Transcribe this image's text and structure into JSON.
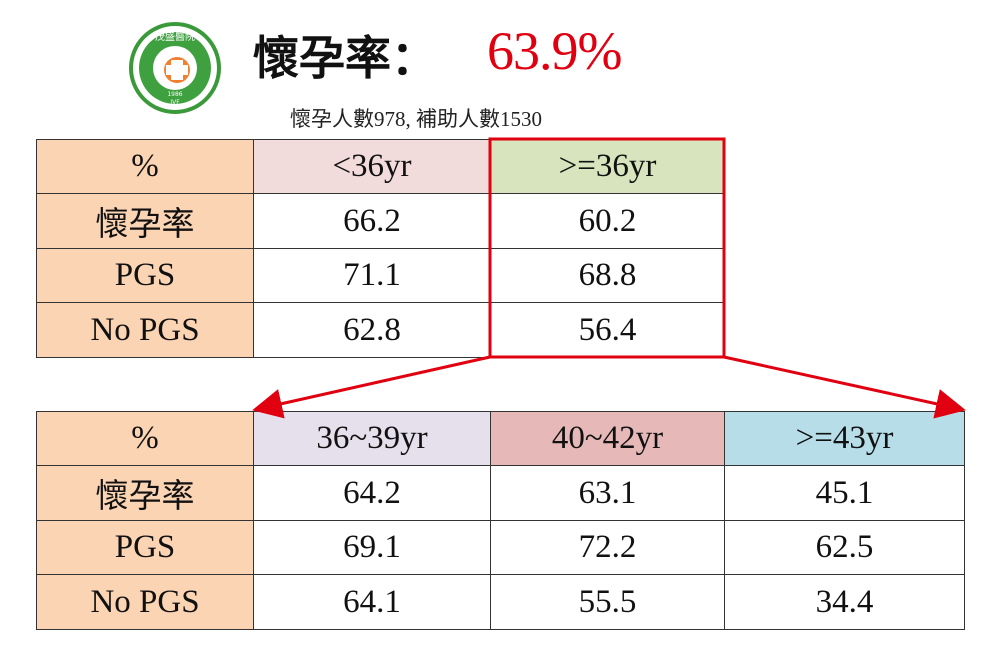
{
  "header": {
    "logo": {
      "name": "茂盛醫院",
      "year": "1986",
      "tag": "IVF"
    },
    "title": "懷孕率：",
    "rate": "63.9%",
    "subtitle": "懷孕人數978, 補助人數1530"
  },
  "table_1": {
    "header": [
      "%",
      "<36yr",
      ">=36yr"
    ],
    "rows": [
      [
        "懷孕率",
        66.2,
        60.2
      ],
      [
        "PGS",
        71.1,
        68.8
      ],
      [
        "No PGS",
        62.8,
        56.4
      ]
    ]
  },
  "table_2": {
    "header": [
      "%",
      "36~39yr",
      "40~42yr",
      ">=43yr"
    ],
    "rows": [
      [
        "懷孕率",
        64.2,
        63.1,
        45.1
      ],
      [
        "PGS",
        69.1,
        72.2,
        62.5
      ],
      [
        "No PGS",
        64.1,
        55.5,
        34.4
      ]
    ]
  }
}
